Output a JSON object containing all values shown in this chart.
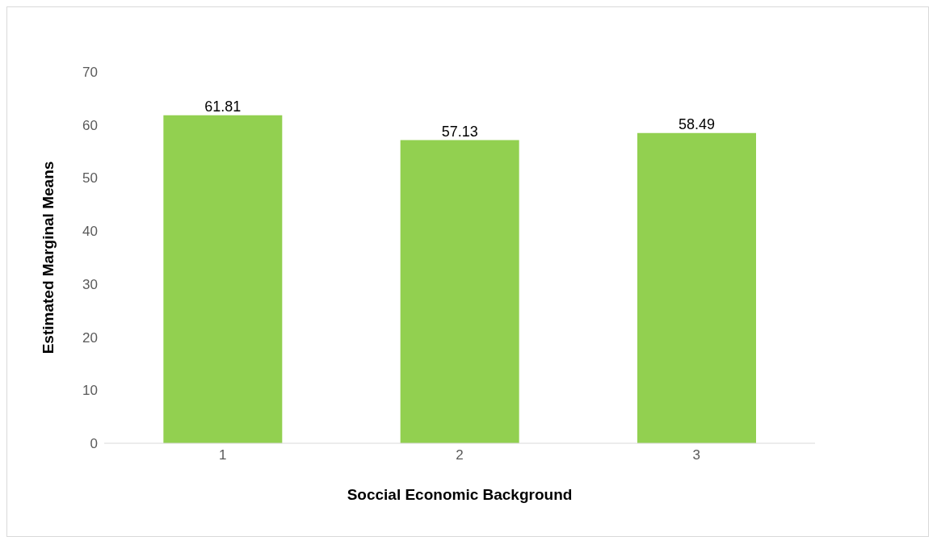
{
  "chart_data": {
    "type": "bar",
    "xlabel": "Soccial Economic Background",
    "ylabel": "Estimated Marginal Means",
    "categories": [
      "1",
      "2",
      "3"
    ],
    "values": [
      61.81,
      57.13,
      58.49
    ],
    "color": "#92d050",
    "ylim": [
      0,
      70
    ],
    "yticks": [
      0,
      10,
      20,
      30,
      40,
      50,
      60,
      70
    ],
    "data_labels": true,
    "grid": false,
    "legend": false
  }
}
